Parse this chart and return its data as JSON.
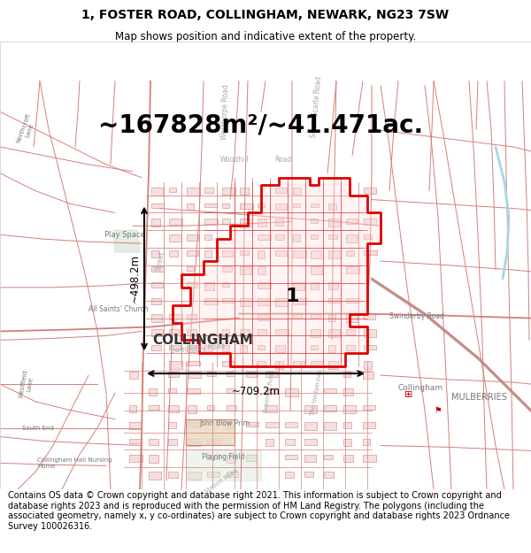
{
  "title": "1, FOSTER ROAD, COLLINGHAM, NEWARK, NG23 7SW",
  "subtitle": "Map shows position and indicative extent of the property.",
  "area_text": "~167828m²/~41.471ac.",
  "scale_bar_h": "~498.2m",
  "scale_bar_w": "~709.2m",
  "label_1": "1",
  "label_collingham": "COLLINGHAM",
  "footer": "Contains OS data © Crown copyright and database right 2021. This information is subject to Crown copyright and database rights 2023 and is reproduced with the permission of HM Land Registry. The polygons (including the associated geometry, namely x, y co-ordinates) are subject to Crown copyright and database rights 2023 Ordnance Survey 100026316.",
  "bg_color": "#ffffff",
  "map_bg": "#ffffff",
  "road_color": "#d4807a",
  "highlight_color": "#dd0000",
  "title_fontsize": 10,
  "subtitle_fontsize": 8.5,
  "area_fontsize": 20,
  "footer_fontsize": 7,
  "label_fontsize": 16,
  "collingham_fontsize": 11
}
